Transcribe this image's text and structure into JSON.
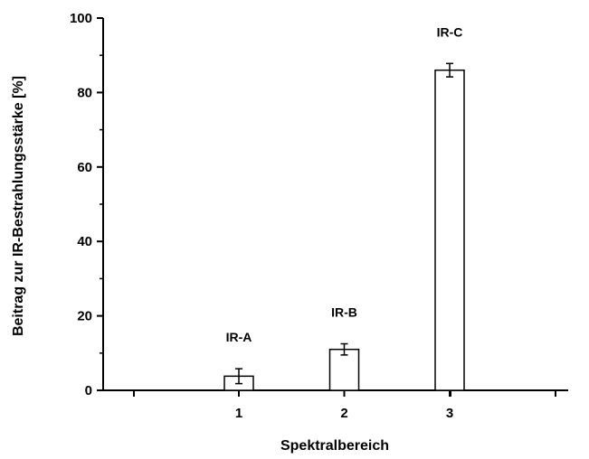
{
  "chart_data": {
    "type": "bar",
    "categories": [
      "1",
      "2",
      "3"
    ],
    "values": [
      3.8,
      11.0,
      86.0
    ],
    "errors": [
      2.0,
      1.5,
      1.8
    ],
    "data_labels": [
      "IR-A",
      "IR-B",
      "IR-C"
    ],
    "xlabel": "Spektralbereich",
    "ylabel": "Beitrag zur IR-Bestrahlungsstärke [%]",
    "ylim": [
      0,
      100
    ],
    "yticks": [
      0,
      20,
      40,
      60,
      80,
      100
    ],
    "grid": false,
    "bar_fill": "#ffffff",
    "bar_stroke": "#000000"
  }
}
